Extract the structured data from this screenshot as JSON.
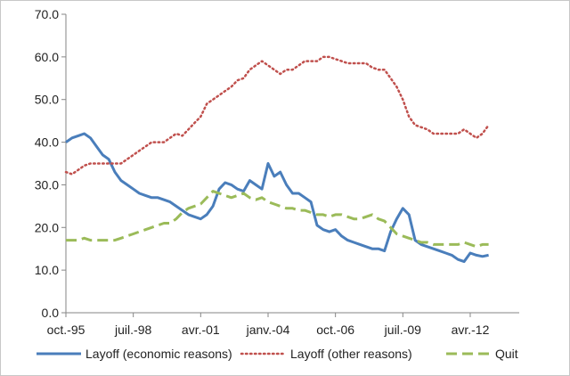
{
  "chart_data": {
    "type": "line",
    "title": "",
    "xlabel": "",
    "ylabel": "",
    "ylim": [
      0,
      70
    ],
    "y_ticks": [
      0,
      10,
      20,
      30,
      40,
      50,
      60,
      70
    ],
    "y_tick_labels": [
      "0.0",
      "10.0",
      "20.0",
      "30.0",
      "40.0",
      "50.0",
      "60.0",
      "70.0"
    ],
    "xlim": [
      1995.75,
      2014.25
    ],
    "x_ticks": [
      {
        "x": 1995.75,
        "label": "oct.-95"
      },
      {
        "x": 1998.5,
        "label": "juil.-98"
      },
      {
        "x": 2001.25,
        "label": "avr.-01"
      },
      {
        "x": 2004.0,
        "label": "janv.-04"
      },
      {
        "x": 2006.75,
        "label": "oct.-06"
      },
      {
        "x": 2009.5,
        "label": "juil.-09"
      },
      {
        "x": 2012.25,
        "label": "avr.-12"
      }
    ],
    "grid": false,
    "legend_position": "bottom",
    "series": [
      {
        "name": "Layoff (economic reasons)",
        "color": "#4a7ebb",
        "style": "solid",
        "points": [
          [
            1995.75,
            40
          ],
          [
            1996.0,
            41
          ],
          [
            1996.25,
            41.5
          ],
          [
            1996.5,
            42
          ],
          [
            1996.75,
            41
          ],
          [
            1997.0,
            39
          ],
          [
            1997.25,
            37
          ],
          [
            1997.5,
            36
          ],
          [
            1997.75,
            33
          ],
          [
            1998.0,
            31
          ],
          [
            1998.25,
            30
          ],
          [
            1998.5,
            29
          ],
          [
            1998.75,
            28
          ],
          [
            1999.0,
            27.5
          ],
          [
            1999.25,
            27
          ],
          [
            1999.5,
            27
          ],
          [
            1999.75,
            26.5
          ],
          [
            2000.0,
            26
          ],
          [
            2000.25,
            25
          ],
          [
            2000.5,
            24
          ],
          [
            2000.75,
            23
          ],
          [
            2001.0,
            22.5
          ],
          [
            2001.25,
            22
          ],
          [
            2001.5,
            23
          ],
          [
            2001.75,
            25
          ],
          [
            2002.0,
            29
          ],
          [
            2002.25,
            30.5
          ],
          [
            2002.5,
            30
          ],
          [
            2002.75,
            29
          ],
          [
            2003.0,
            28.5
          ],
          [
            2003.25,
            31
          ],
          [
            2003.5,
            30
          ],
          [
            2003.75,
            29
          ],
          [
            2004.0,
            35
          ],
          [
            2004.25,
            32
          ],
          [
            2004.5,
            33
          ],
          [
            2004.75,
            30
          ],
          [
            2005.0,
            28
          ],
          [
            2005.25,
            28
          ],
          [
            2005.5,
            27
          ],
          [
            2005.75,
            26
          ],
          [
            2006.0,
            20.5
          ],
          [
            2006.25,
            19.5
          ],
          [
            2006.5,
            19
          ],
          [
            2006.75,
            19.5
          ],
          [
            2007.0,
            18
          ],
          [
            2007.25,
            17
          ],
          [
            2007.5,
            16.5
          ],
          [
            2007.75,
            16
          ],
          [
            2008.0,
            15.5
          ],
          [
            2008.25,
            15
          ],
          [
            2008.5,
            15
          ],
          [
            2008.75,
            14.5
          ],
          [
            2009.0,
            19
          ],
          [
            2009.25,
            22
          ],
          [
            2009.5,
            24.5
          ],
          [
            2009.75,
            23
          ],
          [
            2010.0,
            17
          ],
          [
            2010.25,
            16
          ],
          [
            2010.5,
            15.5
          ],
          [
            2010.75,
            15
          ],
          [
            2011.0,
            14.5
          ],
          [
            2011.25,
            14
          ],
          [
            2011.5,
            13.5
          ],
          [
            2011.75,
            12.5
          ],
          [
            2012.0,
            12
          ],
          [
            2012.25,
            14
          ],
          [
            2012.5,
            13.5
          ],
          [
            2012.75,
            13.2
          ],
          [
            2013.0,
            13.5
          ]
        ]
      },
      {
        "name": "Layoff (other reasons)",
        "color": "#c0504d",
        "style": "dotted",
        "points": [
          [
            1995.75,
            33
          ],
          [
            1996.0,
            32.5
          ],
          [
            1996.25,
            33.5
          ],
          [
            1996.5,
            34.5
          ],
          [
            1996.75,
            35
          ],
          [
            1997.0,
            35
          ],
          [
            1997.25,
            35
          ],
          [
            1997.5,
            35
          ],
          [
            1997.75,
            35
          ],
          [
            1998.0,
            35
          ],
          [
            1998.25,
            36
          ],
          [
            1998.5,
            37
          ],
          [
            1998.75,
            38
          ],
          [
            1999.0,
            39
          ],
          [
            1999.25,
            40
          ],
          [
            1999.5,
            40
          ],
          [
            1999.75,
            40
          ],
          [
            2000.0,
            41
          ],
          [
            2000.25,
            42
          ],
          [
            2000.5,
            41.5
          ],
          [
            2000.75,
            43
          ],
          [
            2001.0,
            44.5
          ],
          [
            2001.25,
            46
          ],
          [
            2001.5,
            49
          ],
          [
            2001.75,
            50
          ],
          [
            2002.0,
            51
          ],
          [
            2002.25,
            52
          ],
          [
            2002.5,
            53
          ],
          [
            2002.75,
            54.5
          ],
          [
            2003.0,
            55
          ],
          [
            2003.25,
            57
          ],
          [
            2003.5,
            58
          ],
          [
            2003.75,
            59
          ],
          [
            2004.0,
            58
          ],
          [
            2004.25,
            57
          ],
          [
            2004.5,
            56
          ],
          [
            2004.75,
            57
          ],
          [
            2005.0,
            57
          ],
          [
            2005.25,
            58
          ],
          [
            2005.5,
            59
          ],
          [
            2005.75,
            59
          ],
          [
            2006.0,
            59
          ],
          [
            2006.25,
            60
          ],
          [
            2006.5,
            60
          ],
          [
            2006.75,
            59.5
          ],
          [
            2007.0,
            59
          ],
          [
            2007.25,
            58.5
          ],
          [
            2007.5,
            58.5
          ],
          [
            2007.75,
            58.5
          ],
          [
            2008.0,
            58.5
          ],
          [
            2008.25,
            57.5
          ],
          [
            2008.5,
            57
          ],
          [
            2008.75,
            57
          ],
          [
            2009.0,
            55
          ],
          [
            2009.25,
            53
          ],
          [
            2009.5,
            50
          ],
          [
            2009.75,
            46
          ],
          [
            2010.0,
            44
          ],
          [
            2010.25,
            43.5
          ],
          [
            2010.5,
            43
          ],
          [
            2010.75,
            42
          ],
          [
            2011.0,
            42
          ],
          [
            2011.25,
            42
          ],
          [
            2011.5,
            42
          ],
          [
            2011.75,
            42
          ],
          [
            2012.0,
            43
          ],
          [
            2012.25,
            42
          ],
          [
            2012.5,
            41
          ],
          [
            2012.75,
            42
          ],
          [
            2013.0,
            44
          ]
        ]
      },
      {
        "name": "Quit",
        "color": "#9bbb59",
        "style": "dashed",
        "points": [
          [
            1995.75,
            17
          ],
          [
            1996.0,
            17
          ],
          [
            1996.25,
            17
          ],
          [
            1996.5,
            17.5
          ],
          [
            1996.75,
            17
          ],
          [
            1997.0,
            17
          ],
          [
            1997.25,
            17
          ],
          [
            1997.5,
            17
          ],
          [
            1997.75,
            17
          ],
          [
            1998.0,
            17.5
          ],
          [
            1998.25,
            18
          ],
          [
            1998.5,
            18.5
          ],
          [
            1998.75,
            19
          ],
          [
            1999.0,
            19.5
          ],
          [
            1999.25,
            20
          ],
          [
            1999.5,
            20.5
          ],
          [
            1999.75,
            21
          ],
          [
            2000.0,
            21
          ],
          [
            2000.25,
            22
          ],
          [
            2000.5,
            23.5
          ],
          [
            2000.75,
            24.5
          ],
          [
            2001.0,
            25
          ],
          [
            2001.25,
            25.5
          ],
          [
            2001.5,
            27
          ],
          [
            2001.75,
            28.5
          ],
          [
            2002.0,
            28
          ],
          [
            2002.25,
            27.5
          ],
          [
            2002.5,
            27
          ],
          [
            2002.75,
            27.5
          ],
          [
            2003.0,
            28
          ],
          [
            2003.25,
            27
          ],
          [
            2003.5,
            26.5
          ],
          [
            2003.75,
            27
          ],
          [
            2004.0,
            26
          ],
          [
            2004.25,
            25.5
          ],
          [
            2004.5,
            25
          ],
          [
            2004.75,
            24.5
          ],
          [
            2005.0,
            24.5
          ],
          [
            2005.25,
            24
          ],
          [
            2005.5,
            24
          ],
          [
            2005.75,
            23.5
          ],
          [
            2006.0,
            23
          ],
          [
            2006.25,
            23
          ],
          [
            2006.5,
            22.5
          ],
          [
            2006.75,
            23
          ],
          [
            2007.0,
            23
          ],
          [
            2007.25,
            22.5
          ],
          [
            2007.5,
            22
          ],
          [
            2007.75,
            22
          ],
          [
            2008.0,
            22.5
          ],
          [
            2008.25,
            23
          ],
          [
            2008.5,
            22
          ],
          [
            2008.75,
            21.5
          ],
          [
            2009.0,
            20
          ],
          [
            2009.25,
            18.5
          ],
          [
            2009.5,
            18
          ],
          [
            2009.75,
            17.5
          ],
          [
            2010.0,
            17
          ],
          [
            2010.25,
            16.5
          ],
          [
            2010.5,
            16.5
          ],
          [
            2010.75,
            16
          ],
          [
            2011.0,
            16
          ],
          [
            2011.25,
            16
          ],
          [
            2011.5,
            16
          ],
          [
            2011.75,
            16
          ],
          [
            2012.0,
            16.5
          ],
          [
            2012.25,
            16
          ],
          [
            2012.5,
            15.5
          ],
          [
            2012.75,
            16
          ],
          [
            2013.0,
            16
          ]
        ]
      }
    ]
  }
}
